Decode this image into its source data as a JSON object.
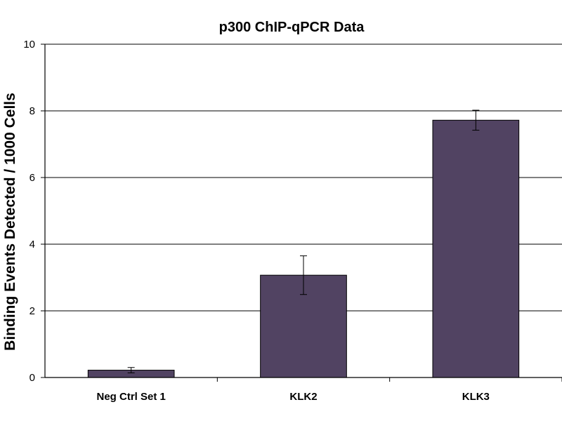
{
  "chart_data": {
    "type": "bar",
    "title": "p300 ChIP-qPCR Data",
    "xlabel": "",
    "ylabel": "Binding Events Detected / 1000 Cells",
    "categories": [
      "Neg Ctrl Set 1",
      "KLK2",
      "KLK3"
    ],
    "values": [
      0.22,
      3.07,
      7.72
    ],
    "error_bars": [
      0.08,
      0.58,
      0.3
    ],
    "ylim": [
      0,
      10
    ],
    "yticks": [
      0,
      2,
      4,
      6,
      8,
      10
    ],
    "grid": true,
    "legend": "none",
    "bar_color": "#514362"
  }
}
